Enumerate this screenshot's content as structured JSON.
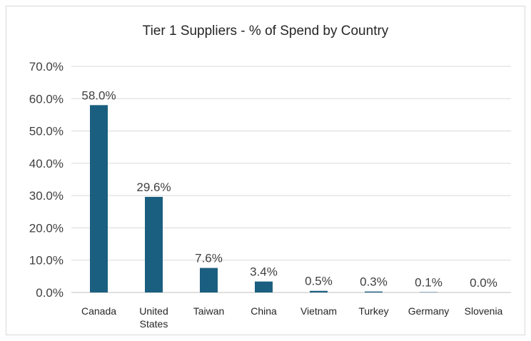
{
  "chart_data": {
    "type": "bar",
    "title": "Tier 1 Suppliers - % of Spend by Country",
    "xlabel": "",
    "ylabel": "",
    "categories": [
      [
        "Canada"
      ],
      [
        "United",
        "States"
      ],
      [
        "Taiwan"
      ],
      [
        "China"
      ],
      [
        "Vietnam"
      ],
      [
        "Turkey"
      ],
      [
        "Germany"
      ],
      [
        "Slovenia"
      ]
    ],
    "values": [
      58.0,
      29.6,
      7.6,
      3.4,
      0.5,
      0.3,
      0.1,
      0.0
    ],
    "data_labels": [
      "58.0%",
      "29.6%",
      "7.6%",
      "3.4%",
      "0.5%",
      "0.3%",
      "0.1%",
      "0.0%"
    ],
    "ylim": [
      0,
      70
    ],
    "y_ticks": [
      0,
      10,
      20,
      30,
      40,
      50,
      60,
      70
    ],
    "y_tick_labels": [
      "0.0%",
      "10.0%",
      "20.0%",
      "30.0%",
      "40.0%",
      "50.0%",
      "60.0%",
      "70.0%"
    ],
    "grid": true,
    "legend": "none",
    "colors": {
      "bar": "#1b5f80",
      "grid": "#d9d9d9",
      "axis": "#bfbfbf"
    }
  }
}
